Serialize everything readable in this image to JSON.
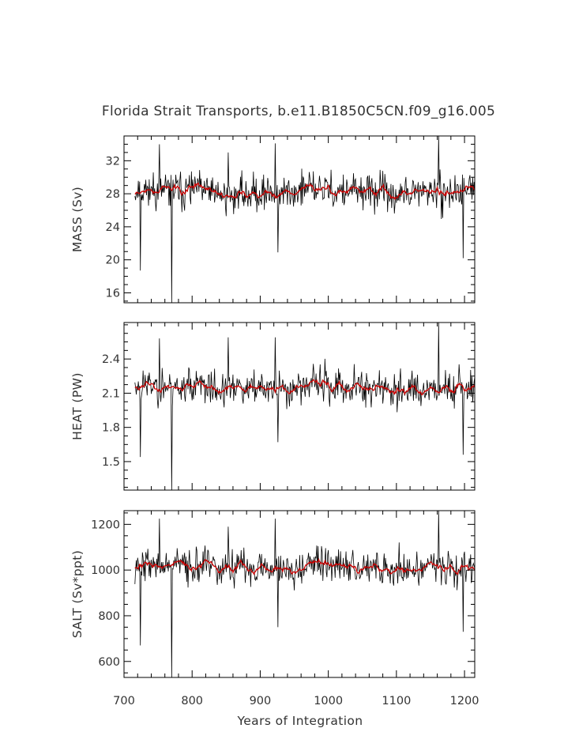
{
  "chart_data": {
    "type": "line",
    "title": "Florida Strait Transports, b.e11.B1850C5CN.f09_g16.005",
    "xlabel": "Years of Integration",
    "xlim": [
      700,
      1215
    ],
    "x_ticks": [
      700,
      800,
      900,
      1000,
      1100,
      1200
    ],
    "x_tick_labels": [
      "700",
      "800",
      "900",
      "1000",
      "1100",
      "1200"
    ],
    "data_start_year": 716,
    "grid": false,
    "series_colors": {
      "annual": "#000000",
      "smoothed": "#cc0000"
    },
    "panels": [
      {
        "ylabel": "MASS (Sv)",
        "ylim": [
          14.8,
          35.0
        ],
        "yticks": [
          16,
          20,
          24,
          28,
          32
        ],
        "ytick_labels": [
          "16",
          "20",
          "24",
          "28",
          "32"
        ],
        "mean": 28.2,
        "spread": 1.6,
        "noise_seed": 11,
        "series": [
          {
            "values": [
              {
                "x": 724,
                "y": 18.7
              },
              {
                "x": 752,
                "y": 34.0
              },
              {
                "x": 770,
                "y": 14.8
              },
              {
                "x": 853,
                "y": 33.0
              },
              {
                "x": 922,
                "y": 34.1
              },
              {
                "x": 926,
                "y": 20.9
              },
              {
                "x": 1162,
                "y": 35.0
              },
              {
                "x": 1198,
                "y": 20.2
              }
            ]
          }
        ]
      },
      {
        "ylabel": "HEAT (PW)",
        "ylim": [
          1.25,
          2.72
        ],
        "yticks": [
          1.5,
          1.8,
          2.1,
          2.4
        ],
        "ytick_labels": [
          "1.5",
          "1.8",
          "2.1",
          "2.4"
        ],
        "mean": 2.15,
        "spread": 0.115,
        "noise_seed": 23,
        "series": [
          {
            "values": [
              {
                "x": 724,
                "y": 1.54
              },
              {
                "x": 752,
                "y": 2.58
              },
              {
                "x": 770,
                "y": 1.25
              },
              {
                "x": 853,
                "y": 2.59
              },
              {
                "x": 922,
                "y": 2.59
              },
              {
                "x": 926,
                "y": 1.67
              },
              {
                "x": 1162,
                "y": 2.72
              },
              {
                "x": 1198,
                "y": 1.56
              }
            ]
          }
        ]
      },
      {
        "ylabel": "SALT (Sv*ppt)",
        "ylim": [
          530,
          1260
        ],
        "yticks": [
          600,
          800,
          1000,
          1200
        ],
        "ytick_labels": [
          "600",
          "800",
          "1000",
          "1200"
        ],
        "mean": 1015,
        "spread": 57,
        "noise_seed": 37,
        "series": [
          {
            "values": [
              {
                "x": 724,
                "y": 670
              },
              {
                "x": 752,
                "y": 1225
              },
              {
                "x": 770,
                "y": 530
              },
              {
                "x": 853,
                "y": 1190
              },
              {
                "x": 922,
                "y": 1225
              },
              {
                "x": 926,
                "y": 750
              },
              {
                "x": 1162,
                "y": 1260
              },
              {
                "x": 1198,
                "y": 730
              }
            ]
          }
        ]
      }
    ]
  }
}
